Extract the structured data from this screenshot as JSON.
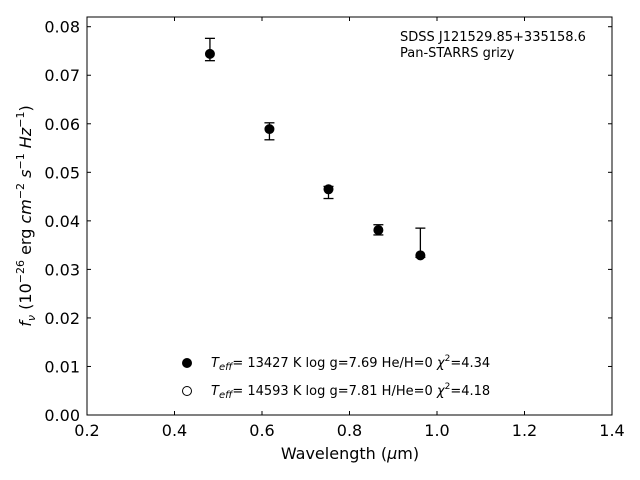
{
  "chart_data": {
    "type": "scatter",
    "title": "",
    "annotation_lines": [
      "SDSS J121529.85+335158.6",
      "Pan-STARRS grizy"
    ],
    "xlabel": "Wavelength (μm)",
    "ylabel": "f_ν (10⁻²⁶ erg cm⁻² s⁻¹ Hz⁻¹)",
    "xlim": [
      0.2,
      1.4
    ],
    "ylim": [
      0.0,
      0.082
    ],
    "xticks": [
      0.2,
      0.4,
      0.6,
      0.8,
      1.0,
      1.2,
      1.4
    ],
    "xtick_labels": [
      "0.2",
      "0.4",
      "0.6",
      "0.8",
      "1.0",
      "1.2",
      "1.4"
    ],
    "yticks": [
      0.0,
      0.01,
      0.02,
      0.03,
      0.04,
      0.05,
      0.06,
      0.07,
      0.08
    ],
    "ytick_labels": [
      "0.00",
      "0.01",
      "0.02",
      "0.03",
      "0.04",
      "0.05",
      "0.06",
      "0.07",
      "0.08"
    ],
    "grid": false,
    "legend_position": "lower-center",
    "observed": {
      "x": [
        0.481,
        0.617,
        0.752,
        0.866,
        0.962
      ],
      "y": [
        0.0744,
        0.0596,
        0.0467,
        0.0384,
        0.0355
      ],
      "yerr_low": [
        0.0014,
        0.0029,
        0.0021,
        0.0013,
        0.003
      ],
      "yerr_high": [
        0.0032,
        0.0006,
        0.0004,
        0.0008,
        0.003
      ]
    },
    "series": [
      {
        "name": "T_eff= 13427 K  log g=7.69  He/H=0  χ²=4.34",
        "marker": "filled-circle",
        "x": [
          0.481,
          0.617,
          0.752,
          0.866,
          0.962
        ],
        "y": [
          0.0744,
          0.0589,
          0.0465,
          0.0381,
          0.0329
        ]
      },
      {
        "name": "T_eff= 14593 K  log g=7.81  H/He=0  χ²=4.18",
        "marker": "open-circle",
        "x": [],
        "y": []
      }
    ],
    "legend": [
      {
        "teff": "= 13427 K  log g=7.69  He/H=0  ",
        "chi": "=4.34",
        "marker": "filled-circle"
      },
      {
        "teff": "= 14593 K  log g=7.81  H/He=0  ",
        "chi": "=4.18",
        "marker": "open-circle"
      }
    ],
    "colors": {
      "marker": "#000000",
      "axis": "#000000"
    }
  }
}
